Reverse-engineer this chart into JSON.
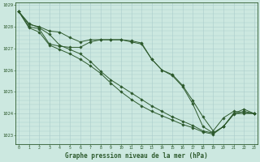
{
  "xlabel": "Graphe pression niveau de la mer (hPa)",
  "xlim": [
    -0.3,
    23.3
  ],
  "ylim": [
    1022.6,
    1029.1
  ],
  "yticks": [
    1023,
    1024,
    1025,
    1026,
    1027,
    1028,
    1029
  ],
  "xticks": [
    0,
    1,
    2,
    3,
    4,
    5,
    6,
    7,
    8,
    9,
    10,
    11,
    12,
    13,
    14,
    15,
    16,
    17,
    18,
    19,
    20,
    21,
    22,
    23
  ],
  "bg_color": "#cce8e0",
  "grid_color": "#aacccc",
  "line_color": "#2d5a2d",
  "line1_x": [
    0,
    1,
    2,
    3,
    4,
    5,
    6,
    7,
    8,
    9,
    10,
    11,
    12,
    13,
    14,
    15,
    16,
    17,
    18,
    19,
    20,
    21,
    22,
    23
  ],
  "line1_y": [
    1028.7,
    1028.1,
    1028.0,
    1027.8,
    1027.75,
    1027.5,
    1027.3,
    1027.4,
    1027.4,
    1027.4,
    1027.4,
    1027.35,
    1027.25,
    1026.5,
    1026.0,
    1025.8,
    1025.3,
    1024.6,
    1023.85,
    1023.2,
    1023.8,
    1024.1,
    1024.05,
    1024.0
  ],
  "line2_x": [
    0,
    1,
    2,
    3,
    4,
    5,
    6,
    7,
    8,
    9,
    10,
    11,
    12,
    13,
    14,
    15,
    16,
    17,
    18,
    19,
    20,
    21,
    22,
    23
  ],
  "line2_y": [
    1028.7,
    1028.0,
    1027.9,
    1027.2,
    1027.1,
    1027.05,
    1027.05,
    1027.3,
    1027.4,
    1027.4,
    1027.4,
    1027.3,
    1027.2,
    1026.5,
    1026.0,
    1025.75,
    1025.25,
    1024.45,
    1023.4,
    1023.1,
    1023.4,
    1024.0,
    1024.0,
    1024.0
  ],
  "line3_x": [
    0,
    1,
    2,
    3,
    4,
    5,
    6,
    7,
    8,
    9,
    10,
    11,
    12,
    13,
    14,
    15,
    16,
    17,
    18,
    19,
    20,
    21,
    22,
    23
  ],
  "line3_y": [
    1028.7,
    1027.95,
    1027.75,
    1027.15,
    1026.95,
    1026.75,
    1026.5,
    1026.2,
    1025.85,
    1025.4,
    1025.0,
    1024.65,
    1024.35,
    1024.1,
    1023.9,
    1023.7,
    1023.5,
    1023.35,
    1023.15,
    1023.05,
    1023.4,
    1023.95,
    1024.1,
    1024.0
  ],
  "line4_x": [
    0,
    1,
    2,
    3,
    4,
    5,
    6,
    7,
    8,
    9,
    10,
    11,
    12,
    13,
    14,
    15,
    16,
    17,
    18,
    19,
    20,
    21,
    22,
    23
  ],
  "line4_y": [
    1028.7,
    1028.15,
    1027.95,
    1027.65,
    1027.15,
    1026.95,
    1026.75,
    1026.4,
    1025.95,
    1025.55,
    1025.25,
    1024.95,
    1024.65,
    1024.35,
    1024.1,
    1023.85,
    1023.65,
    1023.45,
    1023.2,
    1023.1,
    1023.4,
    1024.0,
    1024.2,
    1024.0
  ]
}
